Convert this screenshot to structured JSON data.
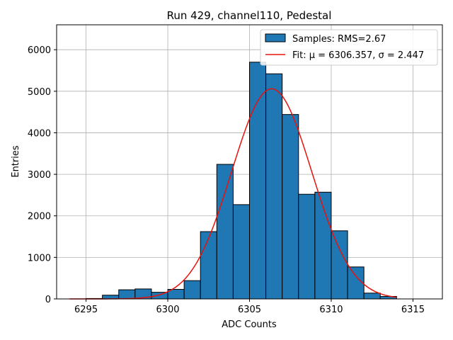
{
  "chart_data": {
    "type": "bar",
    "title": "Run 429, channel110, Pedestal",
    "xlabel": "ADC Counts",
    "ylabel": "Entries",
    "xlim": [
      6293.2,
      6316.8
    ],
    "ylim": [
      0,
      6600
    ],
    "xticks": [
      6295,
      6300,
      6305,
      6310,
      6315
    ],
    "yticks": [
      0,
      1000,
      2000,
      3000,
      4000,
      5000,
      6000
    ],
    "grid": true,
    "bins": {
      "edges": [
        6294,
        6295,
        6296,
        6297,
        6298,
        6299,
        6300,
        6301,
        6302,
        6303,
        6304,
        6305,
        6306,
        6307,
        6308,
        6309,
        6310,
        6311,
        6312,
        6313,
        6314
      ],
      "values": [
        0,
        10,
        90,
        220,
        240,
        160,
        230,
        440,
        1620,
        3240,
        2270,
        5700,
        5420,
        4440,
        2520,
        2570,
        1640,
        770,
        140,
        60
      ],
      "color": "#1f77b4",
      "edgecolor": "#000000"
    },
    "fit": {
      "mu": 6306.357,
      "sigma": 2.447,
      "amplitude": 5060,
      "x_range": [
        6294,
        6314
      ],
      "color": "#e8120c"
    },
    "legend": {
      "location": "top-right",
      "entries": [
        {
          "label": "Samples: RMS=2.67",
          "kind": "patch"
        },
        {
          "label": "Fit: μ = 6306.357, σ = 2.447",
          "kind": "line"
        }
      ]
    }
  }
}
